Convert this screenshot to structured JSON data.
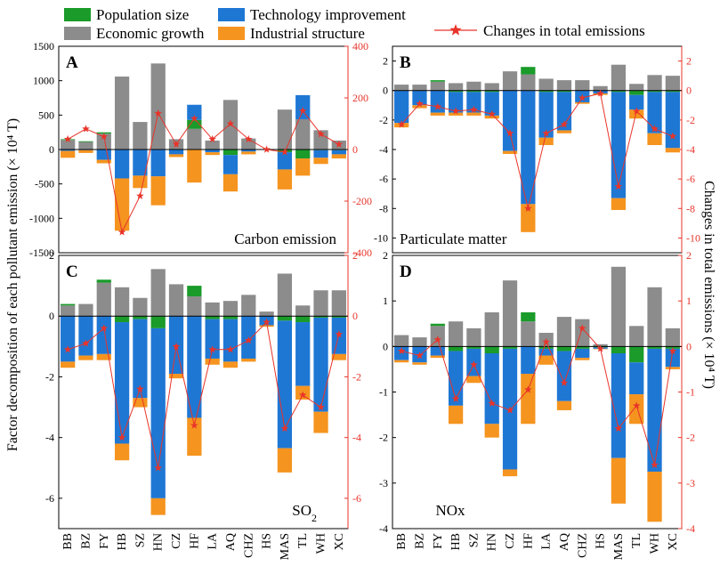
{
  "legend": {
    "items": [
      {
        "name": "Population size",
        "color": "#1a9b2a"
      },
      {
        "name": "Technology improvement",
        "color": "#1f77d4"
      },
      {
        "name": "Economic growth",
        "color": "#8c8c8c"
      },
      {
        "name": "Industrial structure",
        "color": "#f5941f"
      }
    ],
    "line_label": "Changes in total emissions",
    "line_color": "#e8342a"
  },
  "axis_titles": {
    "left": "Factor decomposition of each pollutant emission (× 10⁴ T)",
    "right": "Changes in total emissions (× 10⁴ T)"
  },
  "chart_data": [
    {
      "type": "bar",
      "panel": "A",
      "title": "Carbon emission",
      "categories": [
        "BB",
        "BZ",
        "FY",
        "HB",
        "SZ",
        "HN",
        "CZ",
        "HF",
        "LA",
        "AQ",
        "CHZ",
        "HS",
        "MAS",
        "TL",
        "WH",
        "XC"
      ],
      "ylim": [
        -1500,
        1500
      ],
      "yticks": [
        -1500,
        -1000,
        -500,
        0,
        500,
        1000,
        1500
      ],
      "y2lim": [
        -400,
        400
      ],
      "y2ticks": [
        -400,
        -200,
        0,
        200,
        400
      ],
      "series": [
        {
          "name": "Economic growth",
          "values": [
            140,
            110,
            230,
            1060,
            400,
            1250,
            150,
            300,
            130,
            720,
            160,
            0,
            580,
            440,
            280,
            130
          ]
        },
        {
          "name": "Population size",
          "values": [
            10,
            10,
            20,
            0,
            0,
            0,
            0,
            130,
            0,
            -80,
            0,
            0,
            -40,
            -130,
            -10,
            -10
          ]
        },
        {
          "name": "Technology improvement",
          "values": [
            -20,
            -10,
            -150,
            -420,
            -380,
            -390,
            -70,
            220,
            -40,
            -280,
            -30,
            0,
            -250,
            350,
            -110,
            -60
          ]
        },
        {
          "name": "Industrial structure",
          "values": [
            -100,
            -40,
            -50,
            -760,
            -180,
            -420,
            -40,
            -480,
            -40,
            -250,
            -40,
            0,
            -290,
            -250,
            -90,
            -60
          ]
        }
      ],
      "line": {
        "name": "Changes in total emissions",
        "values": [
          40,
          80,
          50,
          -320,
          -180,
          140,
          20,
          120,
          40,
          100,
          40,
          0,
          -10,
          150,
          60,
          20
        ]
      }
    },
    {
      "type": "bar",
      "panel": "B",
      "title": "Particulate matter",
      "categories": [
        "BB",
        "BZ",
        "FY",
        "HB",
        "SZ",
        "HN",
        "CZ",
        "HF",
        "LA",
        "AQ",
        "CHZ",
        "HS",
        "MAS",
        "TL",
        "WH",
        "XC"
      ],
      "ylim": [
        -11,
        3
      ],
      "yticks": [
        -10,
        -8,
        -6,
        -4,
        -2,
        0,
        2
      ],
      "y2lim": [
        -11,
        3
      ],
      "y2ticks": [
        -10,
        -8,
        -6,
        -4,
        -2,
        0,
        2
      ],
      "series": [
        {
          "name": "Economic growth",
          "values": [
            0.4,
            0.4,
            0.6,
            0.5,
            0.6,
            0.5,
            1.3,
            1.1,
            0.8,
            0.7,
            0.7,
            0.3,
            1.75,
            0.45,
            1.05,
            1.0
          ]
        },
        {
          "name": "Population size",
          "values": [
            0.0,
            0.0,
            0.1,
            -0.1,
            -0.1,
            -0.1,
            0.0,
            0.5,
            -0.1,
            -0.1,
            0.0,
            0.0,
            -0.1,
            -0.3,
            -0.1,
            -0.1
          ]
        },
        {
          "name": "Technology improvement",
          "values": [
            -2.2,
            -1.0,
            -1.5,
            -1.4,
            -1.4,
            -1.6,
            -4.1,
            -7.7,
            -3.1,
            -2.6,
            -0.8,
            -0.2,
            -7.2,
            -1.0,
            -2.8,
            -3.8
          ]
        },
        {
          "name": "Industrial structure",
          "values": [
            -0.3,
            -0.2,
            -0.2,
            -0.2,
            -0.2,
            -0.2,
            -0.2,
            -1.9,
            -0.5,
            -0.2,
            -0.1,
            -0.1,
            -0.8,
            -0.6,
            -0.8,
            -0.3
          ]
        }
      ],
      "line": {
        "name": "Changes in total emissions",
        "values": [
          -2.3,
          -0.9,
          -1.1,
          -1.4,
          -1.3,
          -1.6,
          -2.9,
          -8.0,
          -2.9,
          -2.3,
          -0.5,
          -0.2,
          -6.5,
          -1.4,
          -2.6,
          -3.1
        ]
      }
    },
    {
      "type": "bar",
      "panel": "C",
      "title": "SO2",
      "categories": [
        "BB",
        "BZ",
        "FY",
        "HB",
        "SZ",
        "HN",
        "CZ",
        "HF",
        "LA",
        "AQ",
        "CHZ",
        "HS",
        "MAS",
        "TL",
        "WH",
        "XC"
      ],
      "ylim": [
        -7,
        2
      ],
      "yticks": [
        -6,
        -4,
        -2,
        0,
        2
      ],
      "y2lim": [
        -7,
        2
      ],
      "y2ticks": [
        -6,
        -4,
        -2,
        0,
        2
      ],
      "series": [
        {
          "name": "Economic growth",
          "values": [
            0.35,
            0.4,
            1.1,
            0.95,
            0.6,
            1.55,
            1.05,
            0.65,
            0.45,
            0.5,
            0.7,
            0.15,
            1.4,
            0.35,
            0.85,
            0.85
          ]
        },
        {
          "name": "Population size",
          "values": [
            0.05,
            0.0,
            0.1,
            -0.2,
            -0.1,
            -0.4,
            0.0,
            0.35,
            -0.1,
            -0.1,
            0.0,
            0.0,
            -0.15,
            -0.2,
            -0.05,
            -0.05
          ]
        },
        {
          "name": "Technology improvement",
          "values": [
            -1.5,
            -1.3,
            -1.25,
            -4.0,
            -2.6,
            -5.6,
            -1.9,
            -3.35,
            -1.3,
            -1.4,
            -1.4,
            -0.3,
            -4.2,
            -2.1,
            -3.1,
            -1.2
          ]
        },
        {
          "name": "Industrial structure",
          "values": [
            -0.2,
            -0.15,
            -0.2,
            -0.55,
            -0.3,
            -0.55,
            -0.15,
            -1.25,
            -0.2,
            -0.2,
            -0.1,
            -0.05,
            -0.8,
            -0.45,
            -0.7,
            -0.2
          ]
        }
      ],
      "line": {
        "name": "Changes in total emissions",
        "values": [
          -1.1,
          -0.9,
          -0.4,
          -4.0,
          -2.4,
          -5.0,
          -1.0,
          -3.6,
          -1.1,
          -1.1,
          -0.8,
          -0.2,
          -3.7,
          -2.6,
          -3.0,
          -0.6
        ]
      }
    },
    {
      "type": "bar",
      "panel": "D",
      "title": "NOx",
      "categories": [
        "BB",
        "BZ",
        "FY",
        "HB",
        "SZ",
        "HN",
        "CZ",
        "HF",
        "LA",
        "AQ",
        "CHZ",
        "HS",
        "MAS",
        "TL",
        "WH",
        "XC"
      ],
      "ylim": [
        -4,
        2
      ],
      "yticks": [
        -4,
        -3,
        -2,
        -1,
        0,
        1,
        2
      ],
      "y2lim": [
        -4,
        2
      ],
      "y2ticks": [
        -4,
        -3,
        -2,
        -1,
        0,
        1,
        2
      ],
      "series": [
        {
          "name": "Economic growth",
          "values": [
            0.25,
            0.2,
            0.45,
            0.55,
            0.4,
            0.75,
            1.45,
            0.55,
            0.3,
            0.65,
            0.6,
            0.05,
            1.75,
            0.45,
            1.3,
            0.4
          ]
        },
        {
          "name": "Population size",
          "values": [
            0.0,
            0.0,
            0.05,
            -0.1,
            -0.05,
            -0.15,
            -0.05,
            0.2,
            -0.05,
            -0.1,
            -0.05,
            -0.02,
            -0.15,
            -0.35,
            -0.05,
            -0.05
          ]
        },
        {
          "name": "Technology improvement",
          "values": [
            -0.3,
            -0.35,
            -0.2,
            -1.2,
            -0.6,
            -1.55,
            -2.65,
            -0.6,
            -0.15,
            -1.1,
            -0.2,
            -0.03,
            -2.3,
            -0.7,
            -2.7,
            -0.4
          ]
        },
        {
          "name": "Industrial structure",
          "values": [
            -0.05,
            -0.05,
            -0.05,
            -0.4,
            -0.15,
            -0.3,
            -0.15,
            -1.1,
            -0.2,
            -0.2,
            -0.05,
            -0.01,
            -1.0,
            -0.65,
            -1.1,
            -0.05
          ]
        }
      ],
      "line": {
        "name": "Changes in total emissions",
        "values": [
          -0.1,
          -0.2,
          0.15,
          -1.15,
          -0.4,
          -1.25,
          -1.4,
          -0.95,
          0.1,
          -0.8,
          0.4,
          -0.05,
          -1.8,
          -1.3,
          -2.6,
          -0.1
        ]
      }
    }
  ]
}
